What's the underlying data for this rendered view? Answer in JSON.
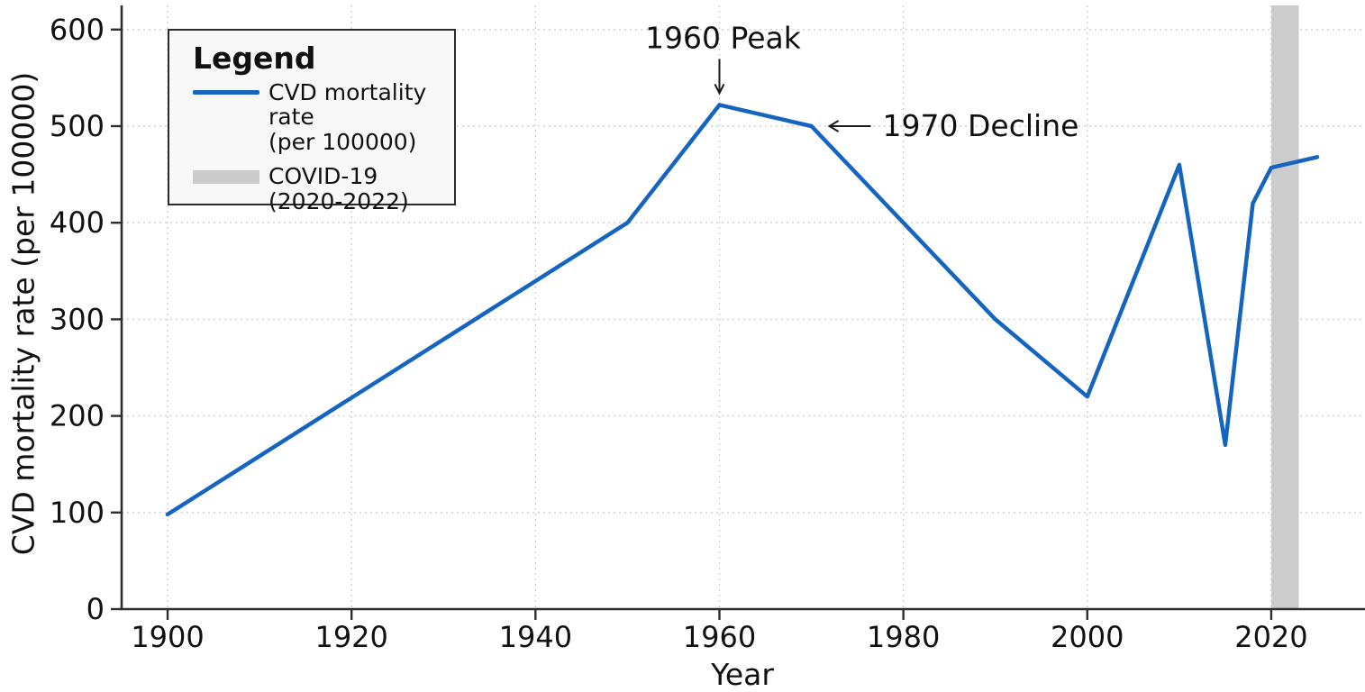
{
  "chart_data": {
    "type": "line",
    "title": "",
    "xlabel": "Year",
    "ylabel": "CVD mortality rate (per 100000)",
    "xlim": [
      1895,
      2030
    ],
    "ylim": [
      0,
      625
    ],
    "x_ticks": [
      1900,
      1920,
      1940,
      1960,
      1980,
      2000,
      2020
    ],
    "y_ticks": [
      0,
      100,
      200,
      300,
      400,
      500,
      600
    ],
    "grid": true,
    "legend_position": "top-left",
    "series": [
      {
        "name": "CVD mortality rate (per 100000)",
        "color": "#1565C0",
        "x": [
          1900,
          1950,
          1960,
          1970,
          1980,
          1990,
          2000,
          2010,
          2015,
          2018,
          2020,
          2025
        ],
        "values": [
          98,
          400,
          522,
          500,
          400,
          300,
          220,
          460,
          170,
          420,
          457,
          468
        ]
      }
    ],
    "bands": [
      {
        "name": "COVID-19 (2020-2022)",
        "x_start": 2020,
        "x_end": 2023,
        "color": "#cccccc"
      }
    ],
    "annotations": [
      {
        "text": "1960 Peak",
        "x": 1960,
        "y": 522,
        "arrow": "down"
      },
      {
        "text": "1970 Decline",
        "x": 1970,
        "y": 500,
        "arrow": "left"
      }
    ]
  },
  "legend": {
    "title": "Legend",
    "items": [
      {
        "swatch": "line",
        "color": "#1565C0",
        "lines": [
          "CVD mortality rate",
          "(per 100000)"
        ]
      },
      {
        "swatch": "band",
        "color": "#cbcbcb",
        "lines": [
          "COVID-19",
          "(2020-2022)"
        ]
      }
    ]
  },
  "colors": {
    "line": "#1565C0",
    "band": "#cccccc",
    "grid": "#cfcfcf",
    "axis": "#2e2e2e",
    "text": "#111111",
    "legend_bg": "#f8f8f8"
  }
}
